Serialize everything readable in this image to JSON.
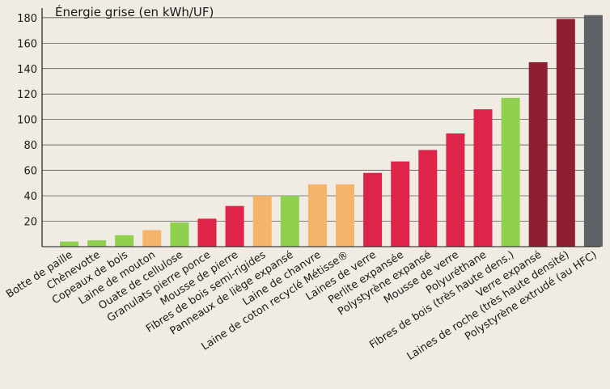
{
  "chart_data": {
    "type": "bar",
    "title": "Énergie grise (en kWh/UF)",
    "xlabel": "",
    "ylabel": "",
    "ylim": [
      0,
      185
    ],
    "yticks": [
      20,
      40,
      60,
      80,
      100,
      120,
      140,
      160,
      180
    ],
    "grid": true,
    "categories": [
      "Botte de paille",
      "Chènevotte",
      "Copeaux de bois",
      "Laine de mouton",
      "Ouate de cellulose",
      "Granulats pierre ponce",
      "Mousse de pierre",
      "Fibres de bois semi-rigides",
      "Panneaux de liège expansé",
      "Laine de chanvre",
      "Laine de coton recyclé Métisse®",
      "Laines de verre",
      "Perlite expansée",
      "Polystyrène expansé",
      "Mousse de verre",
      "Polyuréthane",
      "Fibres de bois (très haute dens.)",
      "Verre expansé",
      "Laines de roche (très haute densité)",
      "Polystyrène extrudé (au HFC)"
    ],
    "values": [
      4,
      5,
      9,
      13,
      19,
      22,
      32,
      40,
      40,
      49,
      49,
      58,
      67,
      76,
      89,
      108,
      117,
      145,
      179,
      182
    ],
    "colors": [
      "#8fd14f",
      "#8fd14f",
      "#8fd14f",
      "#f6b46b",
      "#8fd14f",
      "#de2449",
      "#de2449",
      "#f6b46b",
      "#8fd14f",
      "#f6b46b",
      "#f6b46b",
      "#de2449",
      "#de2449",
      "#de2449",
      "#de2449",
      "#de2449",
      "#8fd14f",
      "#8e1f33",
      "#8e1f33",
      "#5e6266"
    ]
  }
}
